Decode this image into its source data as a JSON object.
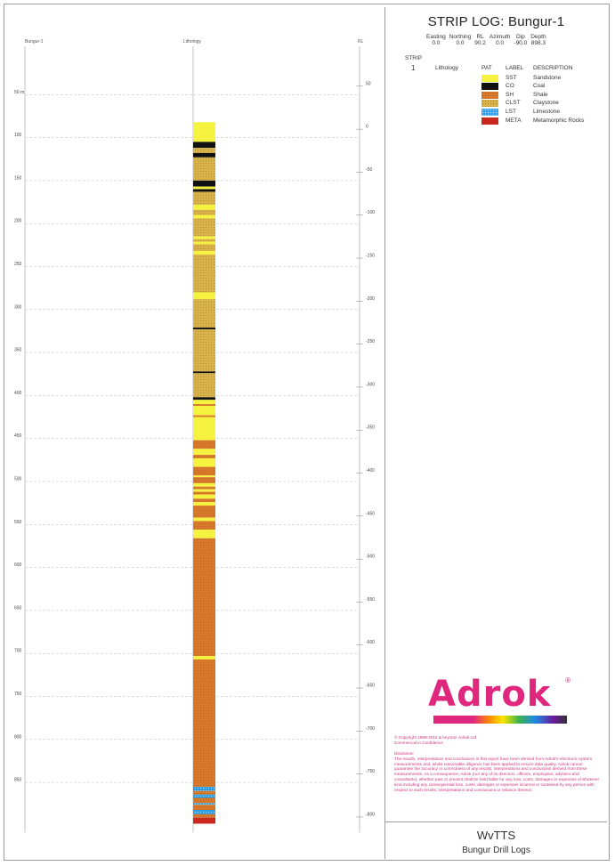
{
  "title": "STRIP LOG: Bungur-1",
  "coordinates": {
    "headers": [
      "Easting",
      "Northing",
      "RL",
      "Azimuth",
      "Dip",
      "Depth"
    ],
    "values": [
      "0.0",
      "0.0",
      "90.2",
      "0.0",
      "-90.0",
      "898.3"
    ]
  },
  "strip": {
    "header": "STRIP",
    "number": "1",
    "name": "Lithology"
  },
  "legend": {
    "headers": {
      "pat": "PAT",
      "label": "LABEL",
      "description": "DESCRIPTION"
    },
    "items": [
      {
        "key": "sst",
        "label": "SST",
        "description": "Sandstone",
        "color": "#f5f240"
      },
      {
        "key": "co",
        "label": "CO",
        "description": "Coal",
        "color": "#111111"
      },
      {
        "key": "sh",
        "label": "SH",
        "description": "Shale",
        "color": "#d8782a"
      },
      {
        "key": "clst",
        "label": "CLST",
        "description": "Claystone",
        "color": "#d9b24a"
      },
      {
        "key": "lst",
        "label": "LST",
        "description": "Limestone",
        "color": "#2a9ae0"
      },
      {
        "key": "meta",
        "label": "META",
        "description": "Metamorphic Rocks",
        "color": "#c8281e"
      }
    ]
  },
  "log": {
    "left_column_label": "Bungur-1",
    "center_column_label": "Lithology",
    "right_column_label": "RL",
    "depth_min": 0,
    "depth_max": 900,
    "depth_ticks": [
      "50 m",
      "100",
      "150",
      "200",
      "250",
      "300",
      "350",
      "400",
      "450",
      "500",
      "550",
      "600",
      "650",
      "700",
      "750",
      "800",
      "850"
    ],
    "depth_tick_values": [
      50,
      100,
      150,
      200,
      250,
      300,
      350,
      400,
      450,
      500,
      550,
      600,
      650,
      700,
      750,
      800,
      850
    ],
    "rl_ticks": [
      "50",
      "0",
      "-50",
      "-100",
      "-150",
      "-200",
      "-250",
      "-300",
      "-350",
      "-400",
      "-450",
      "-500",
      "-550",
      "-600",
      "-650",
      "-700",
      "-750",
      "-800"
    ],
    "rl_tick_values": [
      50,
      0,
      -50,
      -100,
      -150,
      -200,
      -250,
      -300,
      -350,
      -400,
      -450,
      -500,
      -550,
      -600,
      -650,
      -700,
      -750,
      -800
    ],
    "intervals": [
      {
        "from": 82,
        "to": 105,
        "lith": "sst"
      },
      {
        "from": 105,
        "to": 112,
        "lith": "co"
      },
      {
        "from": 112,
        "to": 118,
        "lith": "clst"
      },
      {
        "from": 118,
        "to": 123,
        "lith": "co"
      },
      {
        "from": 123,
        "to": 150,
        "lith": "clst"
      },
      {
        "from": 150,
        "to": 157,
        "lith": "co"
      },
      {
        "from": 157,
        "to": 160,
        "lith": "sst"
      },
      {
        "from": 160,
        "to": 163,
        "lith": "co"
      },
      {
        "from": 163,
        "to": 178,
        "lith": "clst"
      },
      {
        "from": 178,
        "to": 184,
        "lith": "sst"
      },
      {
        "from": 184,
        "to": 190,
        "lith": "clst"
      },
      {
        "from": 190,
        "to": 194,
        "lith": "sst"
      },
      {
        "from": 194,
        "to": 215,
        "lith": "clst"
      },
      {
        "from": 215,
        "to": 218,
        "lith": "sst"
      },
      {
        "from": 218,
        "to": 221,
        "lith": "clst"
      },
      {
        "from": 221,
        "to": 224,
        "lith": "sst"
      },
      {
        "from": 224,
        "to": 232,
        "lith": "clst"
      },
      {
        "from": 232,
        "to": 236,
        "lith": "sst"
      },
      {
        "from": 236,
        "to": 280,
        "lith": "clst"
      },
      {
        "from": 280,
        "to": 288,
        "lith": "sst"
      },
      {
        "from": 288,
        "to": 321,
        "lith": "clst"
      },
      {
        "from": 321,
        "to": 323,
        "lith": "co"
      },
      {
        "from": 323,
        "to": 372,
        "lith": "clst"
      },
      {
        "from": 372,
        "to": 374,
        "lith": "co"
      },
      {
        "from": 374,
        "to": 402,
        "lith": "clst"
      },
      {
        "from": 402,
        "to": 405,
        "lith": "co"
      },
      {
        "from": 405,
        "to": 410,
        "lith": "sst"
      },
      {
        "from": 410,
        "to": 412,
        "lith": "sh"
      },
      {
        "from": 412,
        "to": 423,
        "lith": "sst"
      },
      {
        "from": 423,
        "to": 425,
        "lith": "sh"
      },
      {
        "from": 425,
        "to": 452,
        "lith": "sst"
      },
      {
        "from": 452,
        "to": 462,
        "lith": "sh"
      },
      {
        "from": 462,
        "to": 469,
        "lith": "sst"
      },
      {
        "from": 469,
        "to": 473,
        "lith": "sh"
      },
      {
        "from": 473,
        "to": 483,
        "lith": "sst"
      },
      {
        "from": 483,
        "to": 493,
        "lith": "sh"
      },
      {
        "from": 493,
        "to": 495,
        "lith": "sst"
      },
      {
        "from": 495,
        "to": 502,
        "lith": "sh"
      },
      {
        "from": 502,
        "to": 506,
        "lith": "sst"
      },
      {
        "from": 506,
        "to": 509,
        "lith": "sh"
      },
      {
        "from": 509,
        "to": 512,
        "lith": "sst"
      },
      {
        "from": 512,
        "to": 515,
        "lith": "sh"
      },
      {
        "from": 515,
        "to": 520,
        "lith": "sst"
      },
      {
        "from": 520,
        "to": 524,
        "lith": "sh"
      },
      {
        "from": 524,
        "to": 528,
        "lith": "sst"
      },
      {
        "from": 528,
        "to": 542,
        "lith": "sh"
      },
      {
        "from": 542,
        "to": 546,
        "lith": "sst"
      },
      {
        "from": 546,
        "to": 556,
        "lith": "sh"
      },
      {
        "from": 556,
        "to": 566,
        "lith": "sst"
      },
      {
        "from": 566,
        "to": 703,
        "lith": "sh"
      },
      {
        "from": 703,
        "to": 707,
        "lith": "sst"
      },
      {
        "from": 707,
        "to": 855,
        "lith": "sh"
      },
      {
        "from": 855,
        "to": 860,
        "lith": "lst"
      },
      {
        "from": 860,
        "to": 864,
        "lith": "sh"
      },
      {
        "from": 864,
        "to": 868,
        "lith": "lst"
      },
      {
        "from": 868,
        "to": 874,
        "lith": "sh"
      },
      {
        "from": 874,
        "to": 876,
        "lith": "lst"
      },
      {
        "from": 876,
        "to": 882,
        "lith": "sh"
      },
      {
        "from": 882,
        "to": 887,
        "lith": "lst"
      },
      {
        "from": 887,
        "to": 891,
        "lith": "sh"
      },
      {
        "from": 891,
        "to": 898,
        "lith": "meta"
      }
    ]
  },
  "branding": {
    "logo_text": "Adrok",
    "registered_mark": "®",
    "copyright_lines": [
      "© Copyright 1999-2012 & beyond. Adrok Ltd",
      "Commercial in Confidence"
    ],
    "disclaimer_title": "Disclaimer",
    "disclaimer_text": "The results, interpretations and conclusions in this report have been derived from Adrok's electronic system measurements and, whilst reasonable diligence has been applied to ensure data quality, Adrok cannot guarantee the accuracy or correctness of any results, interpretations and conclusions derived from these measurements. As a consequence, Adrok (nor any of its directors, officers, employees, advisers and consultants), whether past or present shall be held liable for any loss, costs, damages or expenses of whatever kind including any consequential loss, costs, damages or expenses incurred or sustained by any person with respect to such results, interpretations and conclusions or reliance thereon."
  },
  "footer": {
    "title": "WvTTS",
    "subtitle": "Bungur Drill Logs"
  }
}
